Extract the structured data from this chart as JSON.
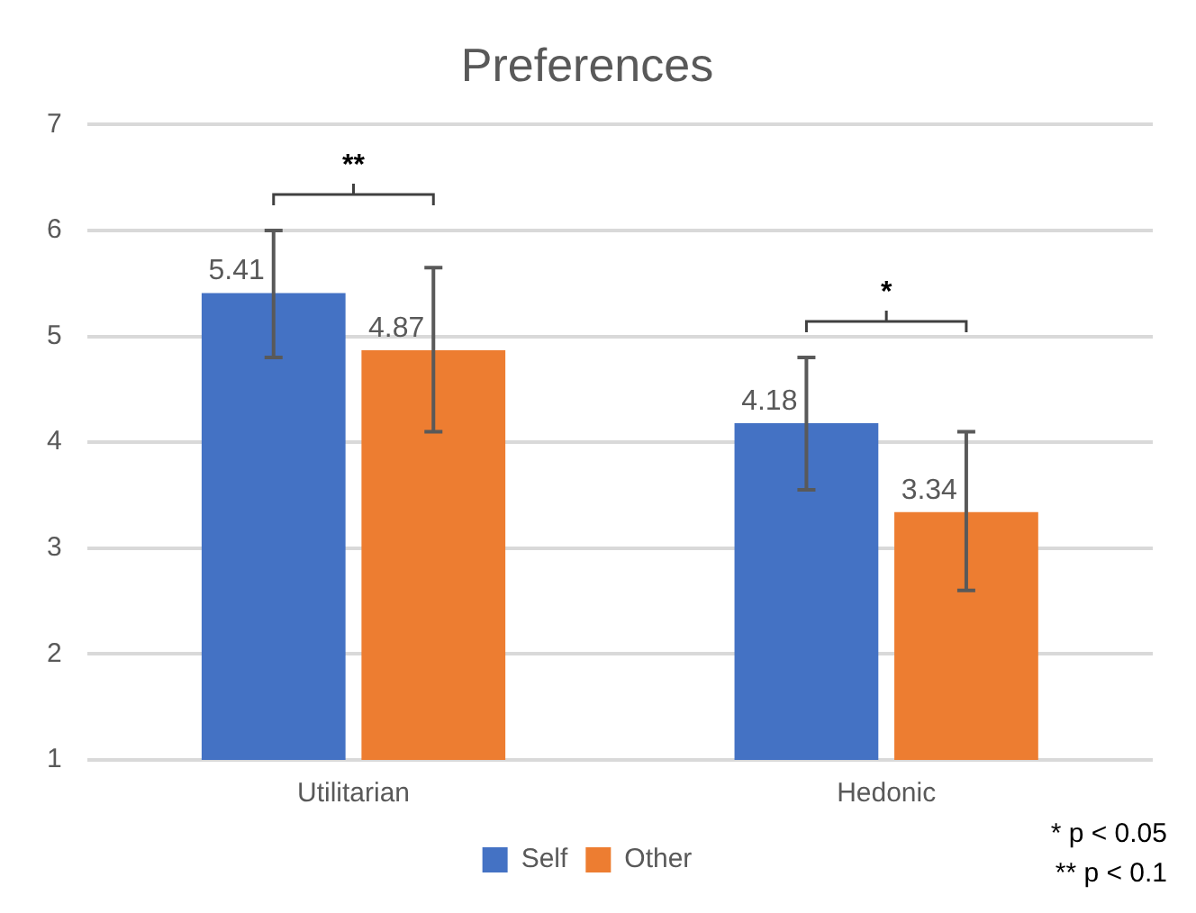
{
  "chart_data": {
    "type": "bar",
    "title": "Preferences",
    "categories": [
      "Utilitarian",
      "Hedonic"
    ],
    "series": [
      {
        "name": "Self",
        "color": "#4472c4",
        "values": [
          5.41,
          4.18
        ],
        "errors": [
          [
            4.8,
            6.0
          ],
          [
            3.55,
            4.8
          ]
        ]
      },
      {
        "name": "Other",
        "color": "#ed7d31",
        "values": [
          4.87,
          3.34
        ],
        "errors": [
          [
            4.1,
            5.65
          ],
          [
            2.6,
            4.1
          ]
        ]
      }
    ],
    "ylim": [
      1,
      7
    ],
    "yticks": [
      1,
      2,
      3,
      4,
      5,
      6,
      7
    ],
    "grid": "y",
    "legend": "bottom",
    "data_labels": true,
    "annotations": [
      "**",
      "*",
      "* p < 0.05",
      "** p < 0.1"
    ]
  }
}
